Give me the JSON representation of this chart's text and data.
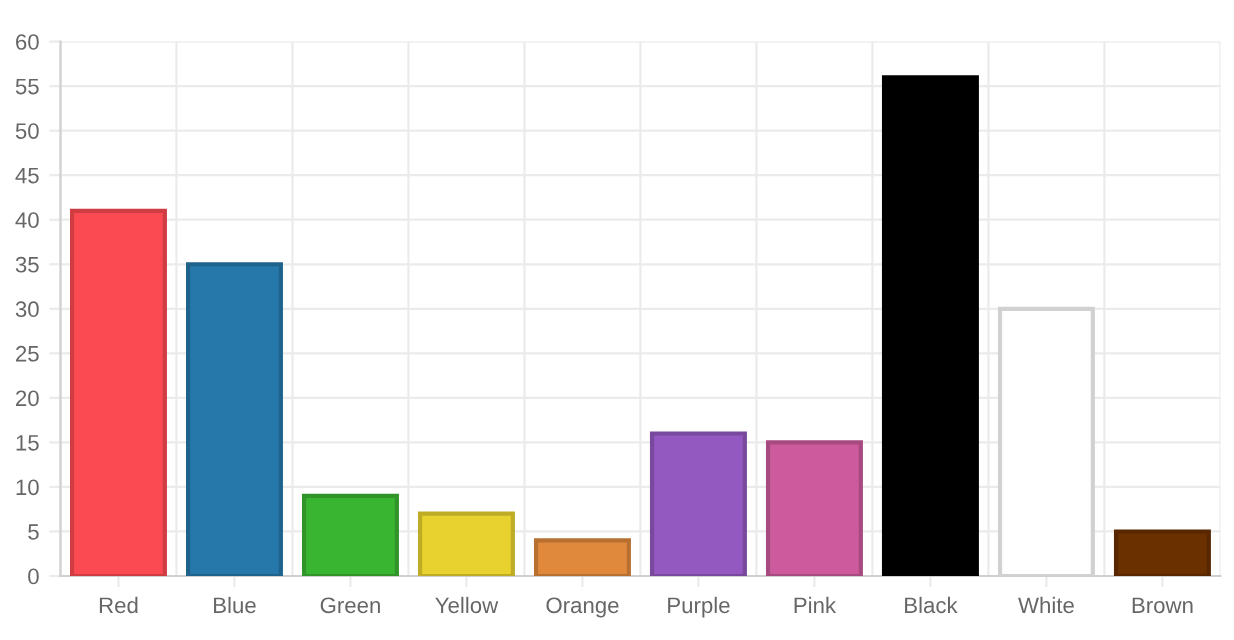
{
  "chart_data": {
    "type": "bar",
    "categories": [
      "Red",
      "Blue",
      "Green",
      "Yellow",
      "Orange",
      "Purple",
      "Pink",
      "Black",
      "White",
      "Brown"
    ],
    "values": [
      41,
      35,
      9,
      7,
      4,
      16,
      15,
      56,
      30,
      5
    ],
    "colors": [
      "#fc4a52",
      "#2677aa",
      "#3ab531",
      "#e8d22f",
      "#e0883c",
      "#9459c0",
      "#cc5a9c",
      "#000000",
      "#ffffff",
      "#6b3000"
    ],
    "ylim": [
      0,
      60
    ],
    "yticks": [
      0,
      5,
      10,
      15,
      20,
      25,
      30,
      35,
      40,
      45,
      50,
      55,
      60
    ],
    "grid": true
  }
}
